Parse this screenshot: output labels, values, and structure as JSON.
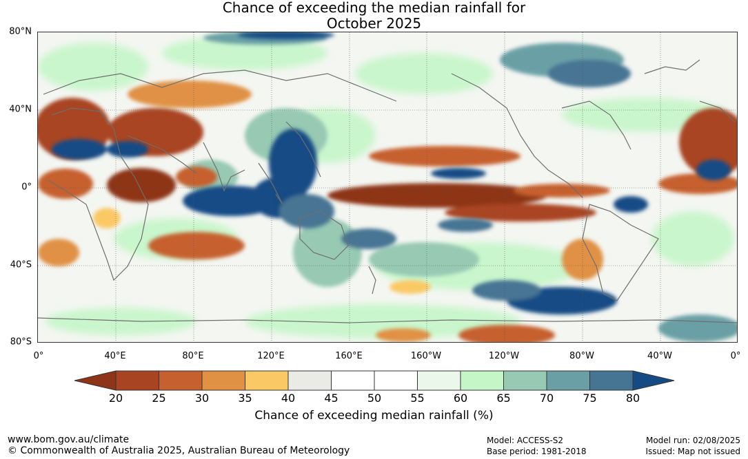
{
  "title": {
    "line1": "Chance of exceeding the median rainfall for",
    "line2": "October 2025"
  },
  "map": {
    "lat_labels": [
      "80°N",
      "40°N",
      "0°",
      "40°S",
      "80°S"
    ],
    "lon_labels": [
      "0°",
      "40°E",
      "80°E",
      "120°E",
      "160°E",
      "160°W",
      "120°W",
      "80°W",
      "40°W",
      "0°"
    ]
  },
  "legend": {
    "title": "Chance of exceeding median rainfall (%)",
    "ticks": [
      "20",
      "25",
      "30",
      "35",
      "40",
      "45",
      "50",
      "55",
      "60",
      "65",
      "70",
      "75",
      "80"
    ],
    "below_color": "#8e3418",
    "above_color": "#154b85",
    "colors": [
      "#a94423",
      "#c6612f",
      "#e09144",
      "#fac966",
      "#ebebe6",
      "#ffffff",
      "#ffffff",
      "#ebf7eb",
      "#c5f6c8",
      "#97c9b3",
      "#6aa0a5",
      "#467593"
    ]
  },
  "footer": {
    "website": "www.bom.gov.au/climate",
    "copyright": "© Commonwealth of Australia 2025, Australian Bureau of Meteorology",
    "model": "Model: ACCESS-S2",
    "base_period": "Base period: 1981-2018",
    "model_run": "Model run: 02/08/2025",
    "issued": "Issued: Map not issued"
  }
}
